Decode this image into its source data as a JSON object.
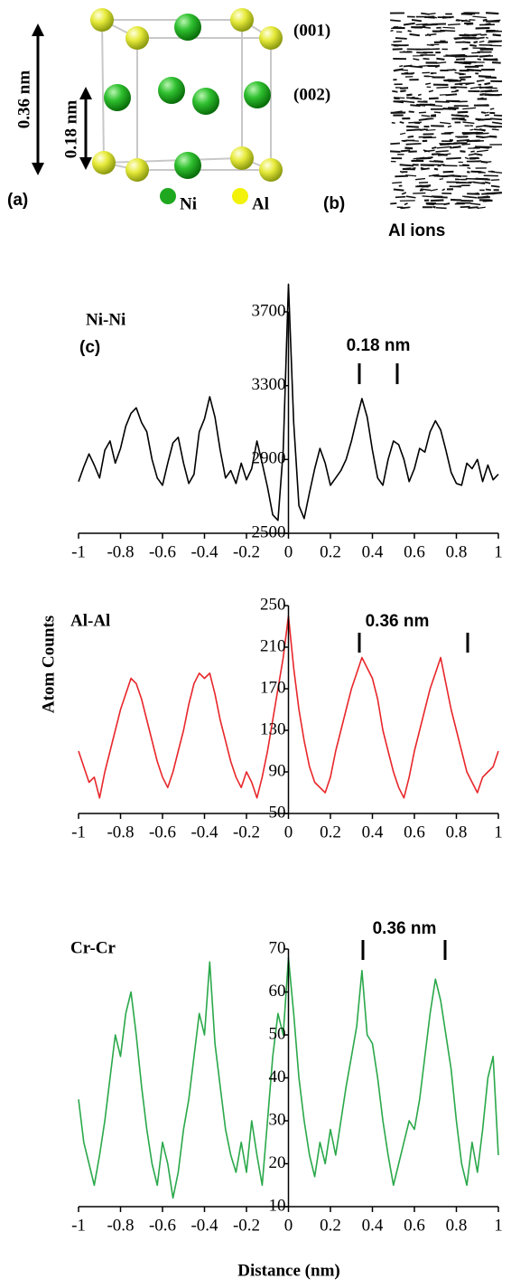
{
  "panel_a": {
    "label": "(a)",
    "planes": [
      "(001)",
      "(002)"
    ],
    "dimensions": [
      "0.36 nm",
      "0.18 nm"
    ],
    "legend": [
      {
        "name": "Ni",
        "color": "#1fa81f"
      },
      {
        "name": "Al",
        "color": "#f2f20a"
      }
    ]
  },
  "panel_b": {
    "label": "(b)",
    "caption": "Al ions"
  },
  "panel_c": {
    "label": "(c)"
  },
  "chart_data": [
    {
      "type": "line",
      "title": "Ni-Ni",
      "annotation": "0.18 nm",
      "color": "#000000",
      "x": [
        -1,
        -0.975,
        -0.95,
        -0.925,
        -0.9,
        -0.875,
        -0.85,
        -0.825,
        -0.8,
        -0.775,
        -0.75,
        -0.725,
        -0.7,
        -0.675,
        -0.65,
        -0.625,
        -0.6,
        -0.575,
        -0.55,
        -0.525,
        -0.5,
        -0.475,
        -0.45,
        -0.425,
        -0.4,
        -0.375,
        -0.35,
        -0.325,
        -0.3,
        -0.275,
        -0.25,
        -0.225,
        -0.2,
        -0.175,
        -0.15,
        -0.125,
        -0.1,
        -0.075,
        -0.05,
        -0.025,
        0,
        0.025,
        0.05,
        0.075,
        0.1,
        0.125,
        0.15,
        0.175,
        0.2,
        0.225,
        0.25,
        0.275,
        0.3,
        0.325,
        0.35,
        0.375,
        0.4,
        0.425,
        0.45,
        0.475,
        0.5,
        0.525,
        0.55,
        0.575,
        0.6,
        0.625,
        0.65,
        0.675,
        0.7,
        0.725,
        0.75,
        0.775,
        0.8,
        0.825,
        0.85,
        0.875,
        0.9,
        0.925,
        0.95,
        0.975,
        1
      ],
      "values": [
        2780,
        2860,
        2930,
        2870,
        2800,
        2950,
        3000,
        2880,
        2960,
        3080,
        3150,
        3180,
        3100,
        3050,
        2900,
        2800,
        2760,
        2880,
        2990,
        3020,
        2880,
        2770,
        2820,
        3050,
        3120,
        3240,
        3130,
        2950,
        2800,
        2840,
        2770,
        2880,
        2790,
        2850,
        3000,
        2880,
        2750,
        2600,
        2570,
        2950,
        3850,
        3100,
        2650,
        2580,
        2720,
        2850,
        2960,
        2880,
        2760,
        2800,
        2840,
        2900,
        3000,
        3120,
        3230,
        3130,
        2950,
        2800,
        2760,
        2900,
        3000,
        2980,
        2900,
        2780,
        2850,
        2960,
        2940,
        3050,
        3110,
        3060,
        2950,
        2830,
        2770,
        2760,
        2880,
        2850,
        2900,
        2780,
        2870,
        2790,
        2820
      ],
      "xlim": [
        -1,
        1
      ],
      "xticks": [
        -1,
        -0.8,
        -0.6,
        -0.4,
        -0.2,
        0,
        0.2,
        0.4,
        0.6,
        0.8,
        1
      ],
      "ylim": [
        2500,
        3700
      ],
      "yticks": [
        2500,
        2900,
        3300,
        3700
      ]
    },
    {
      "type": "line",
      "title": "Al-Al",
      "annotation": "0.36 nm",
      "color": "#e8262a",
      "ylabel": "Atom  Counts",
      "x": [
        -1,
        -0.975,
        -0.95,
        -0.925,
        -0.9,
        -0.875,
        -0.85,
        -0.825,
        -0.8,
        -0.775,
        -0.75,
        -0.725,
        -0.7,
        -0.675,
        -0.65,
        -0.625,
        -0.6,
        -0.575,
        -0.55,
        -0.525,
        -0.5,
        -0.475,
        -0.45,
        -0.425,
        -0.4,
        -0.375,
        -0.35,
        -0.325,
        -0.3,
        -0.275,
        -0.25,
        -0.225,
        -0.2,
        -0.175,
        -0.15,
        -0.125,
        -0.1,
        -0.075,
        -0.05,
        -0.025,
        0,
        0.025,
        0.05,
        0.075,
        0.1,
        0.125,
        0.15,
        0.175,
        0.2,
        0.225,
        0.25,
        0.275,
        0.3,
        0.325,
        0.35,
        0.375,
        0.4,
        0.425,
        0.45,
        0.475,
        0.5,
        0.525,
        0.55,
        0.575,
        0.6,
        0.625,
        0.65,
        0.675,
        0.7,
        0.725,
        0.75,
        0.775,
        0.8,
        0.825,
        0.85,
        0.875,
        0.9,
        0.925,
        0.95,
        0.975,
        1
      ],
      "values": [
        110,
        95,
        80,
        85,
        65,
        90,
        110,
        130,
        150,
        165,
        180,
        175,
        160,
        140,
        120,
        100,
        85,
        75,
        90,
        110,
        130,
        155,
        175,
        185,
        180,
        185,
        165,
        140,
        120,
        100,
        85,
        75,
        90,
        80,
        65,
        85,
        110,
        140,
        170,
        200,
        240,
        190,
        150,
        120,
        95,
        80,
        75,
        70,
        85,
        110,
        130,
        150,
        170,
        185,
        200,
        190,
        180,
        160,
        130,
        110,
        90,
        75,
        65,
        85,
        110,
        130,
        150,
        170,
        185,
        200,
        175,
        150,
        130,
        110,
        90,
        80,
        70,
        85,
        90,
        95,
        110
      ],
      "xlim": [
        -1,
        1
      ],
      "xticks": [
        -1,
        -0.8,
        -0.6,
        -0.4,
        -0.2,
        0,
        0.2,
        0.4,
        0.6,
        0.8,
        1
      ],
      "ylim": [
        50,
        250
      ],
      "yticks": [
        50,
        90,
        130,
        170,
        210,
        250
      ]
    },
    {
      "type": "line",
      "title": "Cr-Cr",
      "annotation": "0.36 nm",
      "color": "#2aa84a",
      "xlabel": "Distance (nm)",
      "x": [
        -1,
        -0.975,
        -0.95,
        -0.925,
        -0.9,
        -0.875,
        -0.85,
        -0.825,
        -0.8,
        -0.775,
        -0.75,
        -0.725,
        -0.7,
        -0.675,
        -0.65,
        -0.625,
        -0.6,
        -0.575,
        -0.55,
        -0.525,
        -0.5,
        -0.475,
        -0.45,
        -0.425,
        -0.4,
        -0.375,
        -0.35,
        -0.325,
        -0.3,
        -0.275,
        -0.25,
        -0.225,
        -0.2,
        -0.175,
        -0.15,
        -0.125,
        -0.1,
        -0.075,
        -0.05,
        -0.025,
        0,
        0.025,
        0.05,
        0.075,
        0.1,
        0.125,
        0.15,
        0.175,
        0.2,
        0.225,
        0.25,
        0.275,
        0.3,
        0.325,
        0.35,
        0.375,
        0.4,
        0.425,
        0.45,
        0.475,
        0.5,
        0.525,
        0.55,
        0.575,
        0.6,
        0.625,
        0.65,
        0.675,
        0.7,
        0.725,
        0.75,
        0.775,
        0.8,
        0.825,
        0.85,
        0.875,
        0.9,
        0.925,
        0.95,
        0.975,
        1
      ],
      "values": [
        35,
        25,
        20,
        15,
        22,
        30,
        40,
        50,
        45,
        55,
        60,
        50,
        38,
        28,
        20,
        15,
        25,
        20,
        12,
        18,
        28,
        35,
        45,
        55,
        50,
        67,
        48,
        38,
        28,
        22,
        18,
        25,
        18,
        30,
        22,
        15,
        30,
        45,
        55,
        50,
        68,
        55,
        40,
        30,
        22,
        17,
        25,
        20,
        28,
        22,
        30,
        38,
        45,
        52,
        65,
        50,
        48,
        40,
        30,
        22,
        15,
        20,
        25,
        30,
        28,
        35,
        45,
        55,
        63,
        58,
        50,
        42,
        30,
        20,
        15,
        25,
        18,
        28,
        40,
        45,
        22
      ],
      "xlim": [
        -1,
        1
      ],
      "xticks": [
        -1,
        -0.8,
        -0.6,
        -0.4,
        -0.2,
        0,
        0.2,
        0.4,
        0.6,
        0.8,
        1
      ],
      "ylim": [
        10,
        70
      ],
      "yticks": [
        10,
        20,
        30,
        40,
        50,
        60,
        70
      ]
    }
  ]
}
